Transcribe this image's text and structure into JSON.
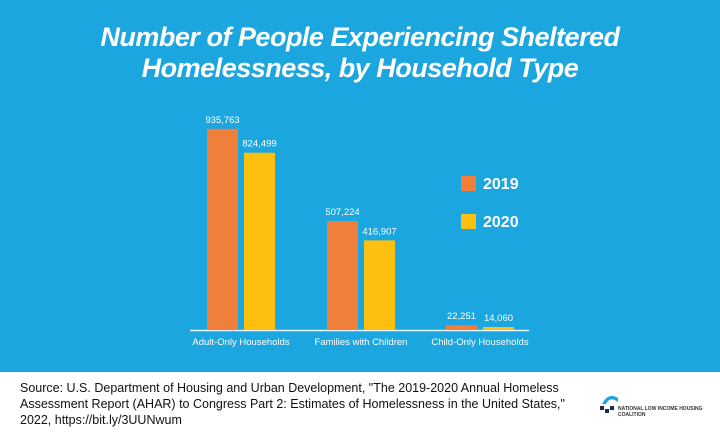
{
  "chart_data": {
    "type": "bar",
    "title": "Number of People Experiencing Sheltered Homelessness, by Household Type",
    "title_lines": [
      "Number of People Experiencing Sheltered",
      "Homelessness, by Household Type"
    ],
    "categories": [
      "Adult-Only Households",
      "Families with Children",
      "Child-Only Households"
    ],
    "series": [
      {
        "name": "2019",
        "values": [
          935763,
          507224,
          22251
        ],
        "labels": [
          "935,763",
          "507,224",
          "22,251"
        ],
        "color": "#f07f3c"
      },
      {
        "name": "2020",
        "values": [
          824499,
          416907,
          14060
        ],
        "labels": [
          "824,499",
          "416,907",
          "14,060"
        ],
        "color": "#fdc010"
      }
    ],
    "ylim": [
      0,
      1000000
    ],
    "grid": false,
    "legend": "right",
    "background": "#1ba6df"
  },
  "footer": {
    "source": "Source: U.S. Department of Housing and Urban Development, \"The 2019-2020 Annual Homeless Assessment Report (AHAR) to Congress Part 2: Estimates of Homelessness in the United States,\" 2022, https://bit.ly/3UUNwum",
    "logo_text": "NATIONAL LOW INCOME HOUSING COALITION"
  }
}
